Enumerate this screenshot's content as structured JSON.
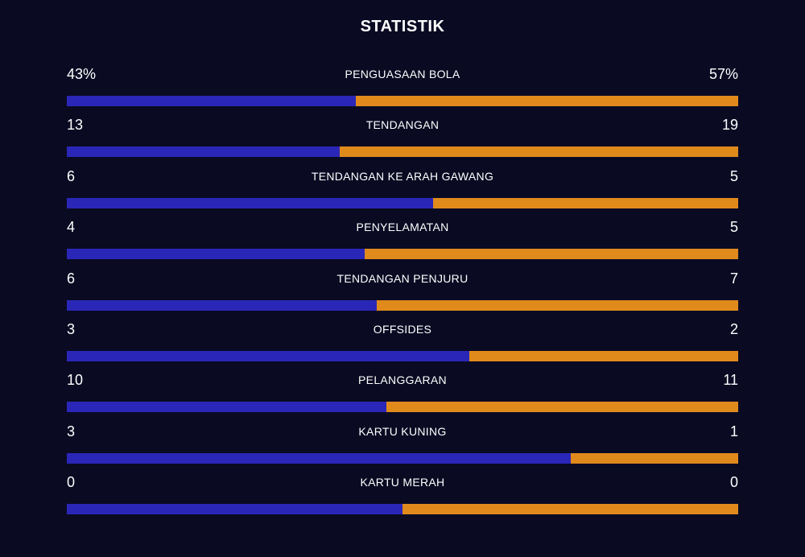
{
  "title": "STATISTIK",
  "colors": {
    "background": "#0a0a23",
    "home": "#2a27b8",
    "away": "#e08a1c"
  },
  "stats": [
    {
      "label": "PENGUASAAN BOLA",
      "home": "43%",
      "away": "57%",
      "home_share": 0.43
    },
    {
      "label": "TENDANGAN",
      "home": "13",
      "away": "19",
      "home_share": 0.406
    },
    {
      "label": "TENDANGAN KE ARAH GAWANG",
      "home": "6",
      "away": "5",
      "home_share": 0.545
    },
    {
      "label": "PENYELAMATAN",
      "home": "4",
      "away": "5",
      "home_share": 0.444
    },
    {
      "label": "TENDANGAN PENJURU",
      "home": "6",
      "away": "7",
      "home_share": 0.462
    },
    {
      "label": "OFFSIDES",
      "home": "3",
      "away": "2",
      "home_share": 0.6
    },
    {
      "label": "PELANGGARAN",
      "home": "10",
      "away": "11",
      "home_share": 0.476
    },
    {
      "label": "KARTU KUNING",
      "home": "3",
      "away": "1",
      "home_share": 0.75
    },
    {
      "label": "KARTU MERAH",
      "home": "0",
      "away": "0",
      "home_share": 0.5
    }
  ]
}
